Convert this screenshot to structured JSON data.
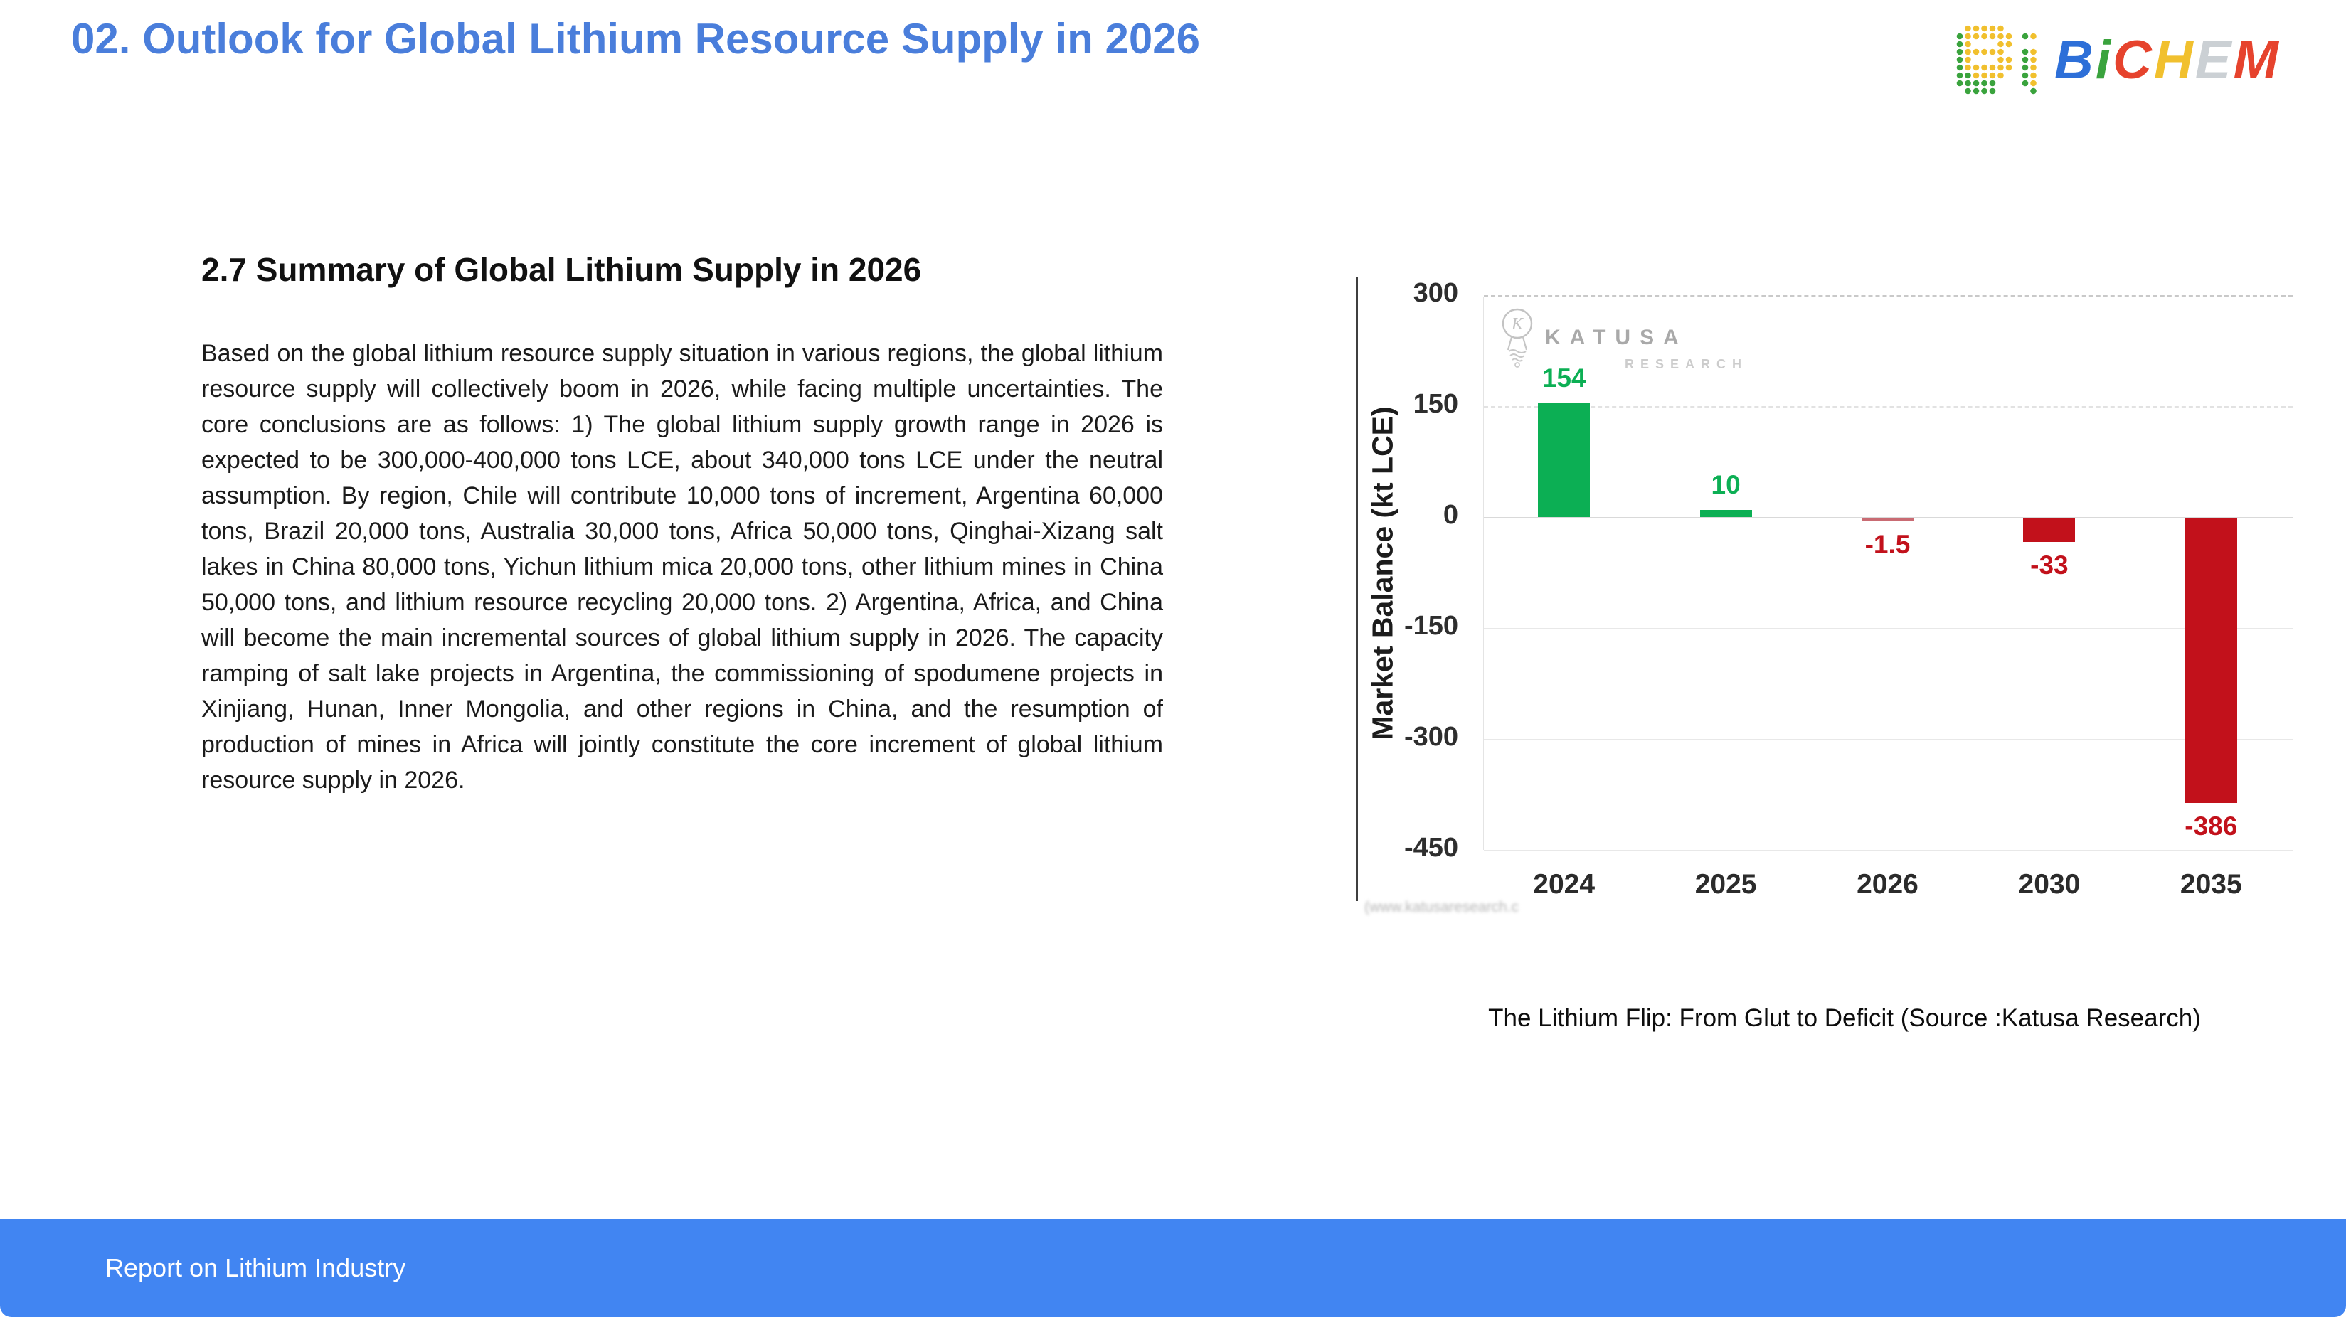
{
  "header": {
    "title": "02. Outlook for Global Lithium Resource Supply in 2026",
    "title_color": "#4a7edb"
  },
  "brand": {
    "letters": [
      {
        "char": "B",
        "color": "#2d6fd8"
      },
      {
        "char": "i",
        "color": "#3aa33d"
      },
      {
        "char": "C",
        "color": "#e6432d"
      },
      {
        "char": "H",
        "color": "#f1c02e"
      },
      {
        "char": "E",
        "color": "#cbd0d4"
      },
      {
        "char": "M",
        "color": "#e6432d"
      }
    ],
    "dot_colors": {
      "green": "#3aa33d",
      "yellow": "#f1c02e"
    }
  },
  "article": {
    "heading": "2.7 Summary of Global Lithium Supply in 2026",
    "paragraph": "Based on the global lithium resource supply situation in various regions, the global lithium resource supply will collectively boom in 2026, while facing multiple uncertainties. The core conclusions are as follows: 1) The global lithium supply growth range in 2026 is expected to be 300,000-400,000 tons LCE, about 340,000 tons LCE under the neutral assumption. By region, Chile will contribute 10,000 tons of increment, Argentina 60,000 tons, Brazil 20,000 tons, Australia 30,000 tons, Africa 50,000 tons, Qinghai-Xizang salt lakes in China 80,000 tons, Yichun lithium mica 20,000 tons, other lithium mines in China 50,000 tons, and lithium resource recycling 20,000 tons. 2) Argentina, Africa, and China will become the main incremental sources of global lithium supply in 2026. The capacity ramping of salt lake projects in Argentina, the commissioning of spodumene projects in Xinjiang, Hunan, Inner Mongolia, and other regions in China, and the resumption of production of mines in Africa will jointly constitute the core increment of global lithium resource supply in 2026."
  },
  "figure": {
    "watermark": {
      "name": "KATUSA",
      "sub": "RESEARCH"
    },
    "blurred_note": "(www.katusaresearch.c",
    "caption": "The Lithium Flip: From Glut to Deficit (Source :Katusa Research)",
    "chart_data": {
      "type": "bar",
      "categories": [
        "2024",
        "2025",
        "2026",
        "2030",
        "2035"
      ],
      "values": [
        154,
        10,
        -1.5,
        -33,
        -386
      ],
      "value_labels": [
        "154",
        "10",
        "-1.5",
        "-33",
        "-386"
      ],
      "bar_colors": [
        "#0caf54",
        "#0caf54",
        "#c96b73",
        "#c2111b",
        "#c2111b"
      ],
      "label_colors": [
        "#0caf54",
        "#0caf54",
        "#c2111b",
        "#c2111b",
        "#c2111b"
      ],
      "title": "",
      "xlabel": "",
      "ylabel": "Market Balance (kt LCE)",
      "yticks": [
        300,
        150,
        0,
        -150,
        -300,
        -450
      ],
      "ylim": [
        -450,
        300
      ],
      "grid": true,
      "legend_position": "none"
    }
  },
  "footer": {
    "label": "Report on Lithium Industry",
    "bg_color": "#4185f2"
  }
}
